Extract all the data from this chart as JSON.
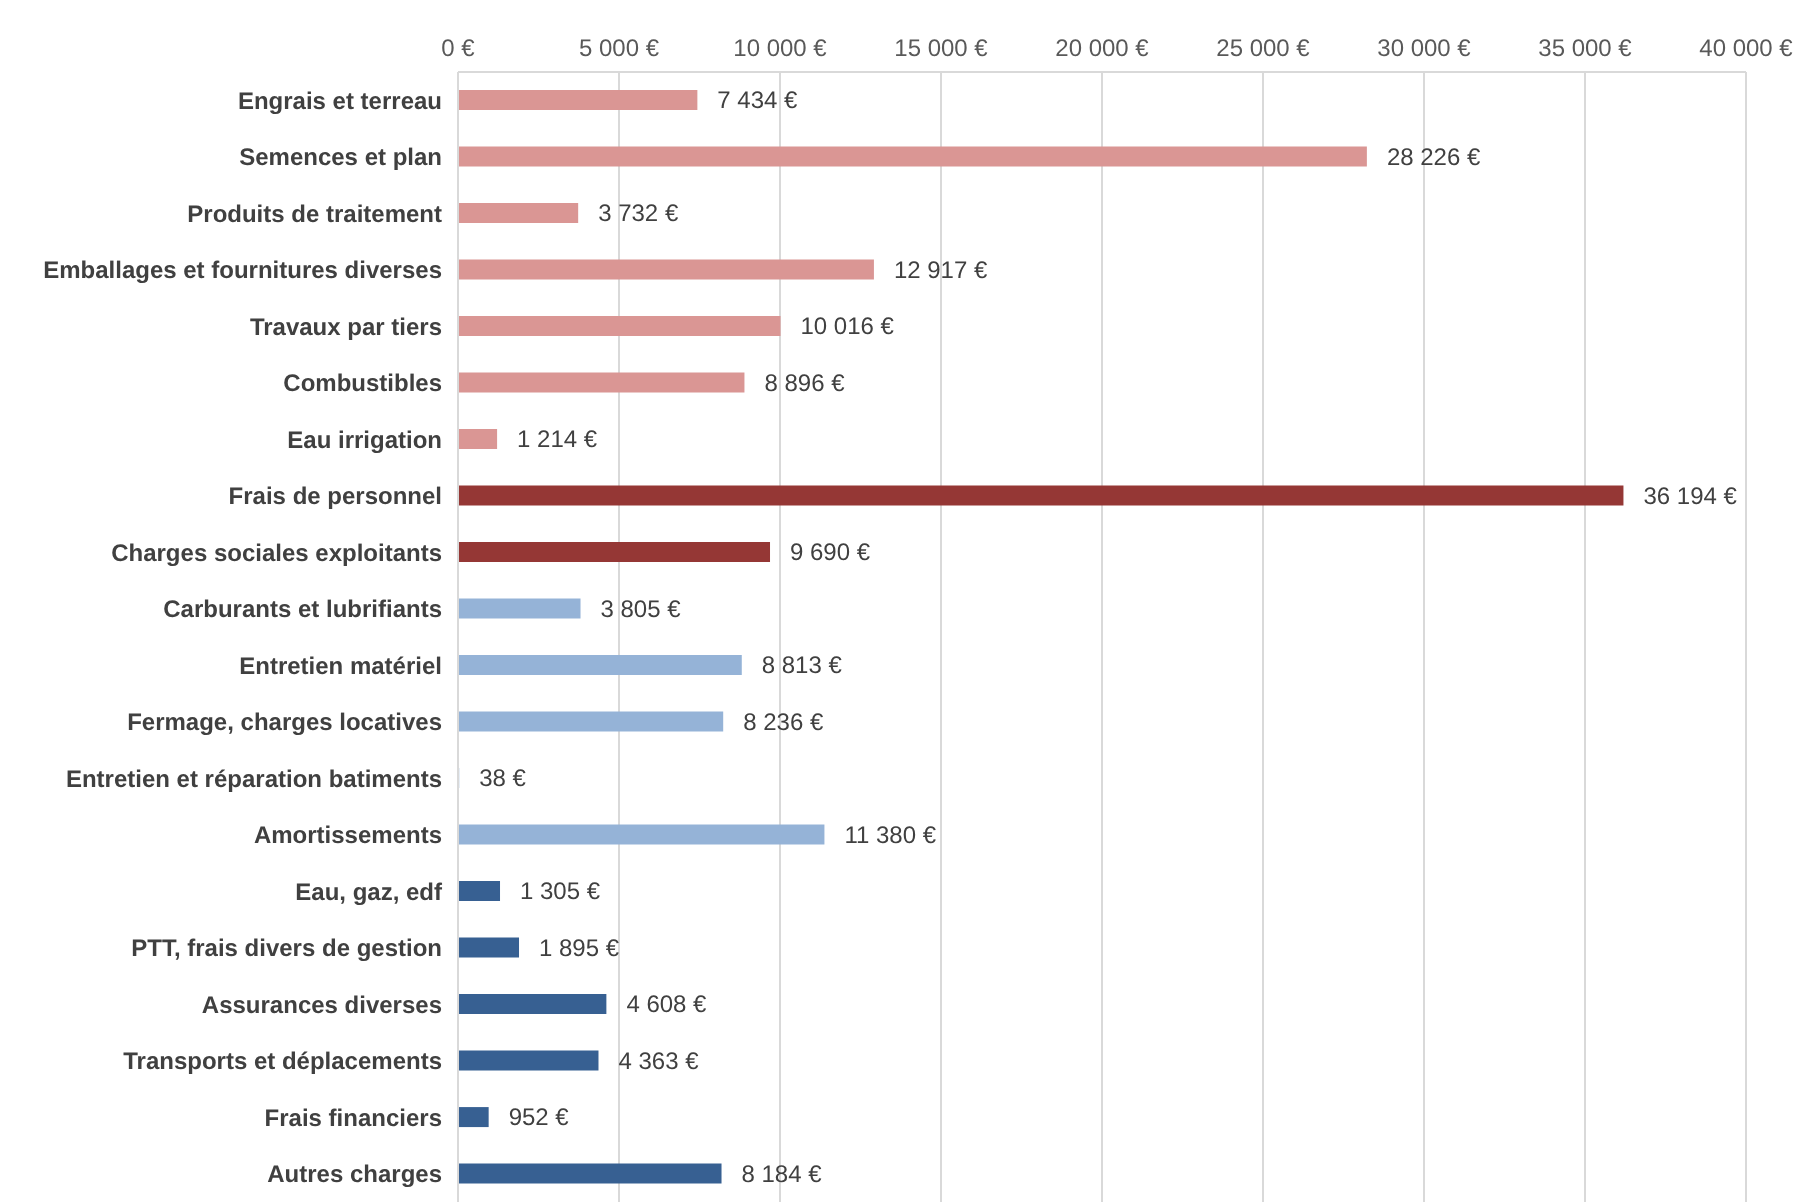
{
  "chart_data": {
    "type": "bar",
    "orientation": "horizontal",
    "categories": [
      "Engrais et terreau",
      "Semences et plan",
      "Produits de traitement",
      "Emballages et fournitures diverses",
      "Travaux par tiers",
      "Combustibles",
      "Eau irrigation",
      "Frais de personnel",
      "Charges sociales exploitants ",
      "Carburants et lubrifiants",
      "Entretien matériel",
      "Fermage, charges locatives",
      "Entretien et réparation batiments",
      "Amortissements",
      "Eau, gaz, edf",
      "PTT, frais divers de gestion",
      "Assurances diverses",
      "Transports et déplacements",
      "Frais financiers",
      "Autres charges"
    ],
    "values": [
      7434,
      28226,
      3732,
      12917,
      10016,
      8896,
      1214,
      36194,
      9690,
      3805,
      8813,
      8236,
      38,
      11380,
      1305,
      1895,
      4608,
      4363,
      952,
      8184
    ],
    "value_labels": [
      "7 434 €",
      "28 226 €",
      "3 732 €",
      "12 917 €",
      "10 016 €",
      "8 896 €",
      "1 214 €",
      "36 194 €",
      "9 690 €",
      "3 805 €",
      "8 813 €",
      "8 236 €",
      "38 €",
      "11 380 €",
      "1 305 €",
      "1 895 €",
      "4 608 €",
      "4 363 €",
      "952 €",
      "8 184 €"
    ],
    "colors": [
      "#da9694",
      "#da9694",
      "#da9694",
      "#da9694",
      "#da9694",
      "#da9694",
      "#da9694",
      "#953735",
      "#953735",
      "#95b3d7",
      "#95b3d7",
      "#95b3d7",
      "#95b3d7",
      "#95b3d7",
      "#376092",
      "#376092",
      "#376092",
      "#376092",
      "#376092",
      "#376092"
    ],
    "xlim": [
      0,
      40000
    ],
    "xticks": [
      {
        "value": 0,
        "label": "0 €"
      },
      {
        "value": 5000,
        "label": "5 000 €"
      },
      {
        "value": 10000,
        "label": "10 000 €"
      },
      {
        "value": 15000,
        "label": "15 000 €"
      },
      {
        "value": 20000,
        "label": "20 000 €"
      },
      {
        "value": 25000,
        "label": "25 000 €"
      },
      {
        "value": 30000,
        "label": "30 000 €"
      },
      {
        "value": 35000,
        "label": "35 000 €"
      },
      {
        "value": 40000,
        "label": "40 000 €"
      }
    ],
    "grid": "x",
    "legend": false
  }
}
